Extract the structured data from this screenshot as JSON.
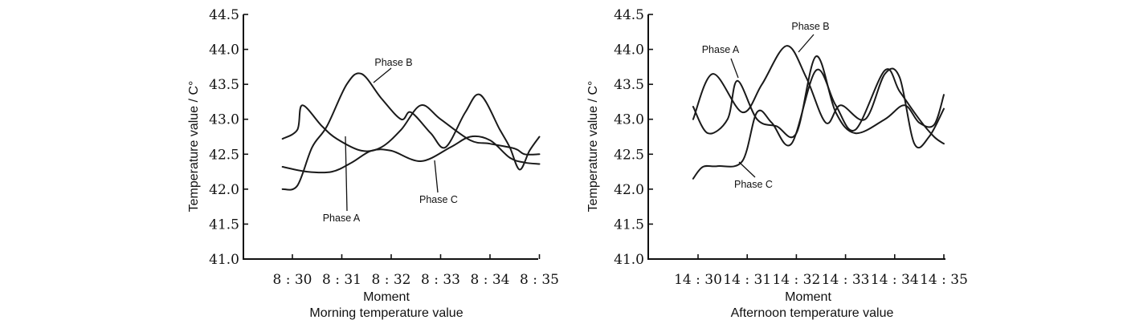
{
  "chart_data": [
    {
      "type": "line",
      "title": "Morning temperature value",
      "xlabel": "Moment",
      "ylabel": "Temperature value / C°",
      "x_ticks": [
        "8:30",
        "8:31",
        "8:32",
        "8:33",
        "8:34",
        "8:35"
      ],
      "y_ticks": [
        "41.0",
        "41.5",
        "42.0",
        "42.5",
        "43.0",
        "43.5",
        "44.0",
        "44.5"
      ],
      "ylim": [
        41.0,
        44.5
      ],
      "grid": false,
      "series": [
        {
          "name": "Phase A",
          "x": [
            "8:29:48",
            "8:30:06",
            "8:30:12",
            "8:30:36",
            "8:30:54",
            "8:31:24",
            "8:31:48",
            "8:32:12",
            "8:32:36",
            "8:33:00",
            "8:33:36",
            "8:34:00",
            "8:34:30",
            "8:34:42",
            "8:35:00"
          ],
          "values": [
            42.72,
            42.85,
            43.2,
            42.9,
            42.72,
            42.55,
            42.6,
            42.85,
            43.2,
            43.0,
            42.7,
            42.65,
            42.58,
            42.5,
            42.5
          ]
        },
        {
          "name": "Phase B",
          "x": [
            "8:29:48",
            "8:30:06",
            "8:30:24",
            "8:30:42",
            "8:31:06",
            "8:31:24",
            "8:31:48",
            "8:32:12",
            "8:32:24",
            "8:32:48",
            "8:33:06",
            "8:33:30",
            "8:33:48",
            "8:34:12",
            "8:34:24",
            "8:34:36",
            "8:34:48",
            "8:35:00"
          ],
          "values": [
            42.0,
            42.05,
            42.6,
            42.9,
            43.5,
            43.65,
            43.3,
            43.0,
            43.1,
            42.8,
            42.6,
            43.1,
            43.35,
            42.85,
            42.6,
            42.28,
            42.55,
            42.75
          ]
        },
        {
          "name": "Phase C",
          "x": [
            "8:29:48",
            "8:30:18",
            "8:30:48",
            "8:31:12",
            "8:31:36",
            "8:32:00",
            "8:32:36",
            "8:33:12",
            "8:33:36",
            "8:34:00",
            "8:34:24",
            "8:34:42",
            "8:35:00"
          ],
          "values": [
            42.32,
            42.25,
            42.25,
            42.38,
            42.55,
            42.55,
            42.4,
            42.6,
            42.75,
            42.7,
            42.45,
            42.38,
            42.36
          ]
        }
      ],
      "annotations": [
        "Phase A",
        "Phase B",
        "Phase C"
      ]
    },
    {
      "type": "line",
      "title": "Afternoon temperature value",
      "xlabel": "Moment",
      "ylabel": "Temperature value / C°",
      "x_ticks": [
        "14:30",
        "14:31",
        "14:32",
        "14:33",
        "14:34",
        "14:35"
      ],
      "y_ticks": [
        "41.0",
        "41.5",
        "42.0",
        "42.5",
        "43.0",
        "43.5",
        "44.0",
        "44.5"
      ],
      "ylim": [
        41.0,
        44.5
      ],
      "grid": false,
      "series": [
        {
          "name": "Phase A",
          "x": [
            "14:29:54",
            "14:30:12",
            "14:30:36",
            "14:30:48",
            "14:31:12",
            "14:31:36",
            "14:32:00",
            "14:32:24",
            "14:32:48",
            "14:33:12",
            "14:33:48",
            "14:34:12",
            "14:34:30",
            "14:34:48",
            "14:35:00"
          ],
          "values": [
            43.18,
            42.8,
            43.0,
            43.55,
            43.0,
            42.9,
            42.8,
            43.9,
            43.1,
            42.8,
            43.0,
            43.2,
            42.95,
            42.92,
            43.35
          ]
        },
        {
          "name": "Phase B",
          "x": [
            "14:29:54",
            "14:30:18",
            "14:30:54",
            "14:31:18",
            "14:31:48",
            "14:32:12",
            "14:32:36",
            "14:32:54",
            "14:33:24",
            "14:33:48",
            "14:34:06",
            "14:34:24",
            "14:34:42",
            "14:35:00"
          ],
          "values": [
            43.0,
            43.65,
            43.1,
            43.5,
            44.05,
            43.6,
            42.95,
            43.2,
            43.0,
            43.65,
            43.6,
            42.65,
            42.75,
            43.15
          ]
        },
        {
          "name": "Phase C",
          "x": [
            "14:29:54",
            "14:30:06",
            "14:30:24",
            "14:30:54",
            "14:31:12",
            "14:31:30",
            "14:31:54",
            "14:32:24",
            "14:32:48",
            "14:33:12",
            "14:33:48",
            "14:34:06",
            "14:34:30",
            "14:34:48",
            "14:35:00"
          ],
          "values": [
            42.15,
            42.32,
            42.33,
            42.4,
            43.1,
            42.95,
            42.65,
            43.7,
            43.2,
            42.85,
            43.7,
            43.4,
            43.0,
            42.75,
            42.65
          ]
        }
      ],
      "annotations": [
        "Phase A",
        "Phase B",
        "Phase C"
      ]
    }
  ]
}
